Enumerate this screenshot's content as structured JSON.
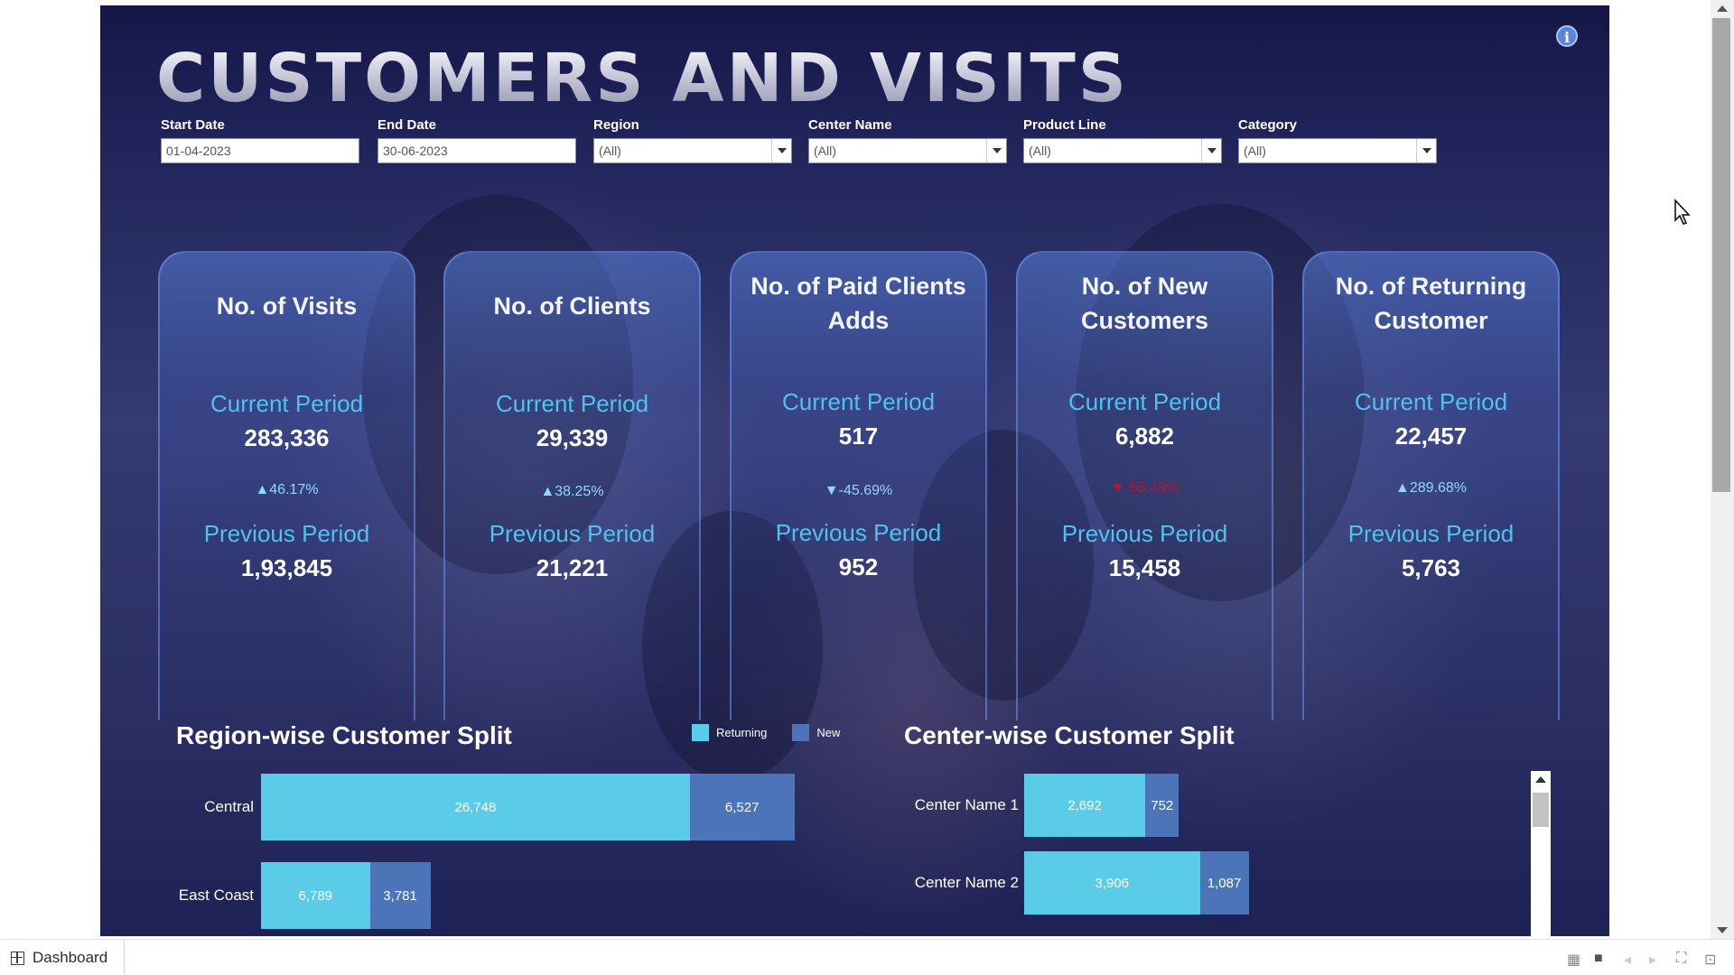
{
  "dashboard": {
    "title": "CUSTOMERS AND VISITS",
    "info_icon": "info-icon"
  },
  "filters": {
    "start_date": {
      "label": "Start Date",
      "value": "01-04-2023"
    },
    "end_date": {
      "label": "End Date",
      "value": "30-06-2023"
    },
    "region": {
      "label": "Region",
      "value": "(All)"
    },
    "center_name": {
      "label": "Center Name",
      "value": "(All)"
    },
    "product_line": {
      "label": "Product Line",
      "value": "(All)"
    },
    "category": {
      "label": "Category",
      "value": "(All)"
    }
  },
  "kpis": [
    {
      "title": "No. of Visits",
      "current_label": "Current Period",
      "current": "283,336",
      "change": "▲46.17%",
      "direction": "up",
      "previous_label": "Previous Period",
      "previous": "1,93,845"
    },
    {
      "title": "No. of Clients",
      "current_label": "Current Period",
      "current": "29,339",
      "change": "▲38.25%",
      "direction": "up",
      "previous_label": "Previous Period",
      "previous": "21,221"
    },
    {
      "title": "No. of Paid Clients Adds",
      "current_label": "Current Period",
      "current": "517",
      "change": "▼-45.69%",
      "direction": "down-light",
      "previous_label": "Previous Period",
      "previous": "952"
    },
    {
      "title": "No. of New Customers",
      "current_label": "Current Period",
      "current": "6,882",
      "change": "▼-55.48%",
      "direction": "down",
      "previous_label": "Previous Period",
      "previous": "15,458"
    },
    {
      "title": "No. of Returning Customer",
      "current_label": "Current Period",
      "current": "22,457",
      "change": "▲289.68%",
      "direction": "up",
      "previous_label": "Previous Period",
      "previous": "5,763"
    }
  ],
  "region_chart": {
    "title": "Region-wise Customer Split",
    "legend": [
      {
        "name": "Returning",
        "color": "#5acce8"
      },
      {
        "name": "New",
        "color": "#4c74b9"
      }
    ]
  },
  "center_chart": {
    "title": "Center-wise Customer Split"
  },
  "chart_data": [
    {
      "type": "bar",
      "orientation": "horizontal-stacked",
      "title": "Region-wise Customer Split",
      "categories": [
        "Central",
        "East Coast"
      ],
      "series": [
        {
          "name": "Returning",
          "values": [
            26748,
            6789
          ],
          "labels": [
            "26,748",
            "6,789"
          ],
          "color": "#5acce8"
        },
        {
          "name": "New",
          "values": [
            6527,
            3781
          ],
          "labels": [
            "6,527",
            "3,781"
          ],
          "color": "#4c74b9"
        }
      ],
      "legend": "top-right",
      "grid": false
    },
    {
      "type": "bar",
      "orientation": "horizontal-stacked",
      "title": "Center-wise Customer Split",
      "categories": [
        "Center Name 1",
        "Center Name 2"
      ],
      "series": [
        {
          "name": "Returning",
          "values": [
            2692,
            3906
          ],
          "labels": [
            "2,692",
            "3,906"
          ],
          "color": "#5acce8"
        },
        {
          "name": "New",
          "values": [
            752,
            1087
          ],
          "labels": [
            "752",
            "1,087"
          ],
          "color": "#4c74b9"
        }
      ],
      "grid": false
    }
  ],
  "footer": {
    "sheet_tab": "Dashboard",
    "icons": [
      "grid-view-icon",
      "slide-view-icon",
      "prev-icon",
      "next-icon",
      "fullscreen-icon",
      "present-icon"
    ]
  }
}
